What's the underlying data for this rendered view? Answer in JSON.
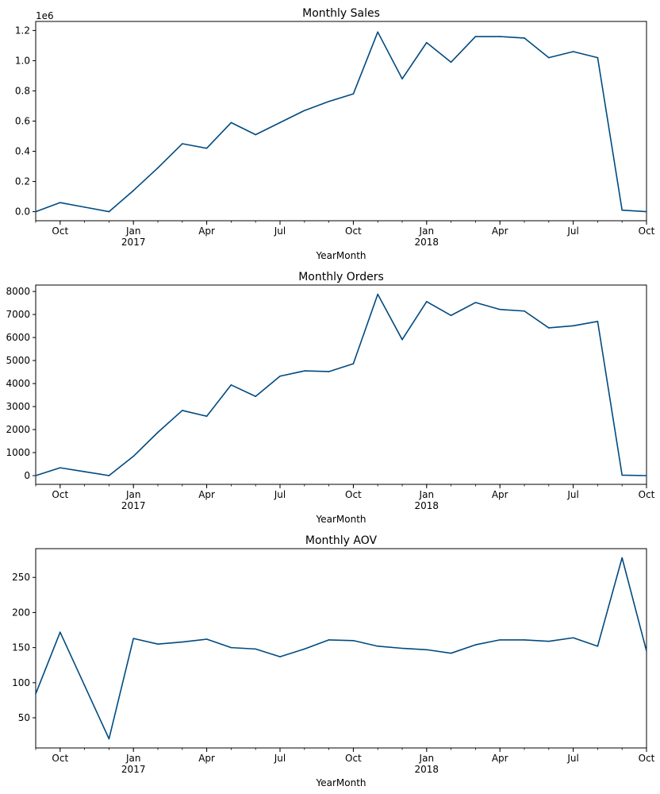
{
  "chart_data": [
    {
      "type": "line",
      "title": "Monthly Sales",
      "xlabel": "YearMonth",
      "ylabel": "",
      "offset_label": "1e6",
      "x": [
        "2016-09",
        "2016-10",
        "2016-11",
        "2016-12",
        "2017-01",
        "2017-02",
        "2017-03",
        "2017-04",
        "2017-05",
        "2017-06",
        "2017-07",
        "2017-08",
        "2017-09",
        "2017-10",
        "2017-11",
        "2017-12",
        "2018-01",
        "2018-02",
        "2018-03",
        "2018-04",
        "2018-05",
        "2018-06",
        "2018-07",
        "2018-08",
        "2018-09",
        "2018-10"
      ],
      "values": [
        0,
        0.06,
        0.03,
        0,
        0.14,
        0.29,
        0.45,
        0.42,
        0.59,
        0.51,
        0.59,
        0.67,
        0.73,
        0.78,
        1.19,
        0.88,
        1.12,
        0.99,
        1.16,
        1.16,
        1.15,
        1.02,
        1.06,
        1.02,
        0.01,
        0.0
      ],
      "ylim": [
        -0.06,
        1.26
      ],
      "yticks": [
        0,
        0.2,
        0.4,
        0.6,
        0.8,
        1.0,
        1.2
      ],
      "ytick_labels": [
        "0.0",
        "0.2",
        "0.4",
        "0.6",
        "0.8",
        "1.0",
        "1.2"
      ],
      "grid": false,
      "legend": "none"
    },
    {
      "type": "line",
      "title": "Monthly Orders",
      "xlabel": "YearMonth",
      "ylabel": "",
      "offset_label": "",
      "x": [
        "2016-09",
        "2016-10",
        "2016-11",
        "2016-12",
        "2017-01",
        "2017-02",
        "2017-03",
        "2017-04",
        "2017-05",
        "2017-06",
        "2017-07",
        "2017-08",
        "2017-09",
        "2017-10",
        "2017-11",
        "2017-12",
        "2018-01",
        "2018-02",
        "2018-03",
        "2018-04",
        "2018-05",
        "2018-06",
        "2018-07",
        "2018-08",
        "2018-09",
        "2018-10"
      ],
      "values": [
        0,
        340,
        170,
        0,
        840,
        1880,
        2830,
        2580,
        3940,
        3440,
        4320,
        4550,
        4520,
        4860,
        7880,
        5910,
        7560,
        6960,
        7520,
        7220,
        7150,
        6420,
        6510,
        6700,
        20,
        0
      ],
      "ylim": [
        -380,
        8280
      ],
      "yticks": [
        0,
        1000,
        2000,
        3000,
        4000,
        5000,
        6000,
        7000,
        8000
      ],
      "ytick_labels": [
        "0",
        "1000",
        "2000",
        "3000",
        "4000",
        "5000",
        "6000",
        "7000",
        "8000"
      ],
      "grid": false,
      "legend": "none"
    },
    {
      "type": "line",
      "title": "Monthly AOV",
      "xlabel": "YearMonth",
      "ylabel": "",
      "offset_label": "",
      "x": [
        "2016-09",
        "2016-10",
        "2016-11",
        "2016-12",
        "2017-01",
        "2017-02",
        "2017-03",
        "2017-04",
        "2017-05",
        "2017-06",
        "2017-07",
        "2017-08",
        "2017-09",
        "2017-10",
        "2017-11",
        "2017-12",
        "2018-01",
        "2018-02",
        "2018-03",
        "2018-04",
        "2018-05",
        "2018-06",
        "2018-07",
        "2018-08",
        "2018-09",
        "2018-10"
      ],
      "values": [
        84,
        172,
        96,
        20,
        163,
        155,
        158,
        162,
        150,
        148,
        137,
        148,
        161,
        160,
        152,
        149,
        147,
        142,
        154,
        161,
        161,
        159,
        164,
        152,
        278,
        145
      ],
      "ylim": [
        7,
        291
      ],
      "yticks": [
        50,
        100,
        150,
        200,
        250
      ],
      "ytick_labels": [
        "50",
        "100",
        "150",
        "200",
        "250"
      ],
      "grid": false,
      "legend": "none"
    }
  ],
  "x_axis": {
    "tick_months": [
      "2016-10",
      "2017-01",
      "2017-04",
      "2017-07",
      "2017-10",
      "2018-01",
      "2018-04",
      "2018-07",
      "2018-10"
    ],
    "tick_labels": [
      "Oct",
      "Jan",
      "Apr",
      "Jul",
      "Oct",
      "Jan",
      "Apr",
      "Jul",
      "Oct"
    ],
    "year_labels": {
      "2017-01": "2017",
      "2018-01": "2018"
    }
  },
  "colors": {
    "line": "#004a80",
    "axes": "#000000",
    "background": "#ffffff"
  }
}
